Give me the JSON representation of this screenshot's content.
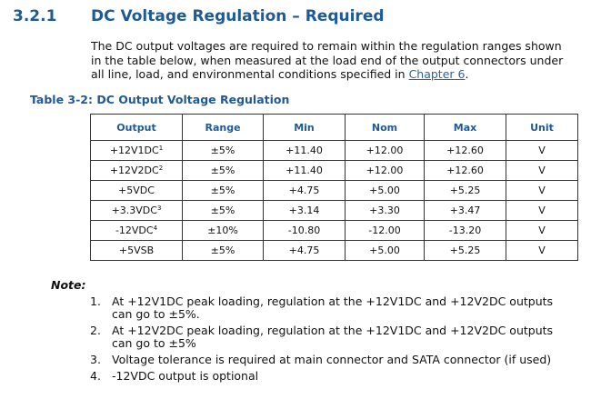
{
  "section": {
    "number": "3.2.1",
    "title": "DC Voltage Regulation – Required"
  },
  "intro": {
    "text": "The DC output voltages are required to remain within the regulation ranges shown in the table below, when measured at the load end of the output connectors under all line, load, and environmental conditions specified in ",
    "link_text": "Chapter 6",
    "suffix": "."
  },
  "table": {
    "caption": "Table 3-2: DC Output Voltage Regulation",
    "headers": [
      "Output",
      "Range",
      "Min",
      "Nom",
      "Max",
      "Unit"
    ],
    "rows": [
      {
        "output": "+12V1DC",
        "footnote": "1",
        "range": "±5%",
        "min": "+11.40",
        "nom": "+12.00",
        "max": "+12.60",
        "unit": "V"
      },
      {
        "output": "+12V2DC",
        "footnote": "2",
        "range": "±5%",
        "min": "+11.40",
        "nom": "+12.00",
        "max": "+12.60",
        "unit": "V"
      },
      {
        "output": "+5VDC",
        "footnote": "",
        "range": "±5%",
        "min": "+4.75",
        "nom": "+5.00",
        "max": "+5.25",
        "unit": "V"
      },
      {
        "output": "+3.3VDC",
        "footnote": "3",
        "range": "±5%",
        "min": "+3.14",
        "nom": "+3.30",
        "max": "+3.47",
        "unit": "V"
      },
      {
        "output": "-12VDC",
        "footnote": "4",
        "range": "±10%",
        "min": "-10.80",
        "nom": "-12.00",
        "max": "-13.20",
        "unit": "V"
      },
      {
        "output": "+5VSB",
        "footnote": "",
        "range": "±5%",
        "min": "+4.75",
        "nom": "+5.00",
        "max": "+5.25",
        "unit": "V"
      }
    ]
  },
  "notes": {
    "label": "Note:",
    "items": [
      {
        "num": "1.",
        "text": "At +12V1DC peak loading, regulation at the +12V1DC and +12V2DC outputs can go to ±5%."
      },
      {
        "num": "2.",
        "text": "At +12V2DC peak loading, regulation at the +12V1DC and +12V2DC outputs can go to ±5%"
      },
      {
        "num": "3.",
        "text": "Voltage tolerance is required at main connector and SATA connector (if used)"
      },
      {
        "num": "4.",
        "text": "-12VDC output is optional"
      }
    ]
  },
  "colors": {
    "heading": "#1f5a96",
    "link": "#2a62a8",
    "text": "#111111",
    "border": "#333333"
  }
}
